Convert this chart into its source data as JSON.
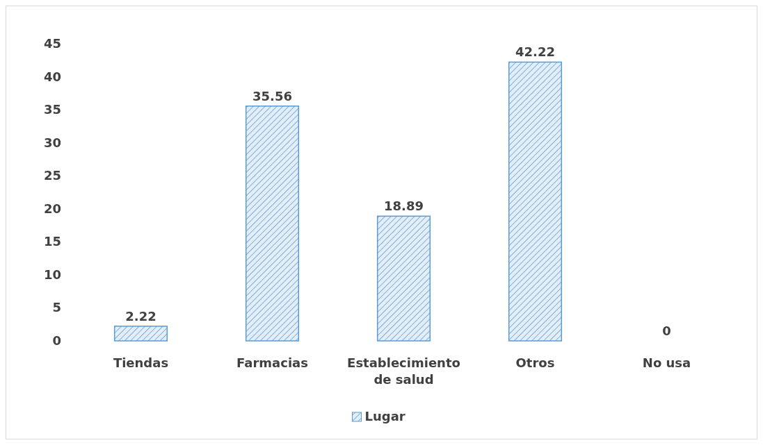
{
  "chart_data": {
    "type": "bar",
    "categories": [
      "Tiendas",
      "Farmacias",
      "Establecimiento de salud",
      "Otros",
      "No usa"
    ],
    "series": [
      {
        "name": "Lugar",
        "color": "#5b9bd5",
        "values": [
          2.22,
          35.56,
          18.89,
          42.22,
          0
        ]
      }
    ],
    "ylim": [
      0,
      45
    ],
    "yticks": [
      0,
      5,
      10,
      15,
      20,
      25,
      30,
      35,
      40,
      45
    ],
    "grid": false,
    "legend": "bottom",
    "data_labels": true
  }
}
